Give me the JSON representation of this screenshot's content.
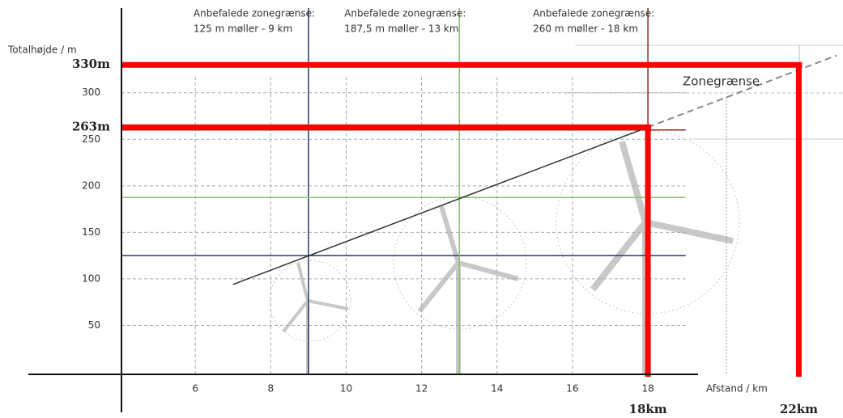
{
  "chart_data": {
    "type": "zone-diagram",
    "y_label": "Totalhøjde / m",
    "x_label": "Afstand / km",
    "xlim": [
      4,
      23
    ],
    "ylim": [
      0,
      391
    ],
    "xticks": [
      6,
      8,
      10,
      12,
      14,
      16,
      18
    ],
    "yticks": [
      50,
      100,
      150,
      200,
      250,
      300
    ],
    "grid": true,
    "zone_line": {
      "label": "Zonegrænse",
      "color": "#333333",
      "x": [
        7,
        18
      ],
      "values": [
        94,
        263
      ],
      "extension_x": [
        18,
        23
      ],
      "extension_values": [
        263,
        340
      ]
    },
    "zones": [
      {
        "title": "Anbefalede zonegrænse:",
        "subtitle": "125 m møller - 9 km",
        "distance": 9,
        "height": 125,
        "color": "#1f3b73"
      },
      {
        "title": "Anbefalede zonegrænse:",
        "subtitle": "187,5 m møller - 13 km",
        "distance": 13,
        "height": 187.5,
        "color": "#8fbf73"
      },
      {
        "title": "Anbefalede zonegrænse:",
        "subtitle": "260 m møller - 18 km",
        "distance": 18,
        "height": 260,
        "color": "#8b2a1a"
      }
    ],
    "limits": [
      {
        "height": 330,
        "height_label": "330m",
        "distance": 22,
        "distance_label": "22km",
        "color": "#ff0000"
      },
      {
        "height": 263,
        "height_label": "263m",
        "distance": 18,
        "distance_label": "18km",
        "color": "#ff0000"
      }
    ]
  }
}
